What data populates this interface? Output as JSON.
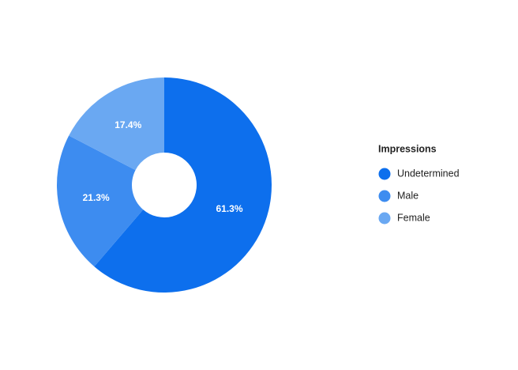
{
  "chart_data": {
    "type": "pie",
    "categories": [
      "Undetermined",
      "Male",
      "Female"
    ],
    "values": [
      61.3,
      21.3,
      17.4
    ],
    "value_labels": [
      "61.3%",
      "21.3%",
      "17.4%"
    ],
    "colors": [
      "#0d6fed",
      "#3d8cf0",
      "#6aa8f2"
    ],
    "legend_title": "Impressions",
    "legend": "right"
  }
}
